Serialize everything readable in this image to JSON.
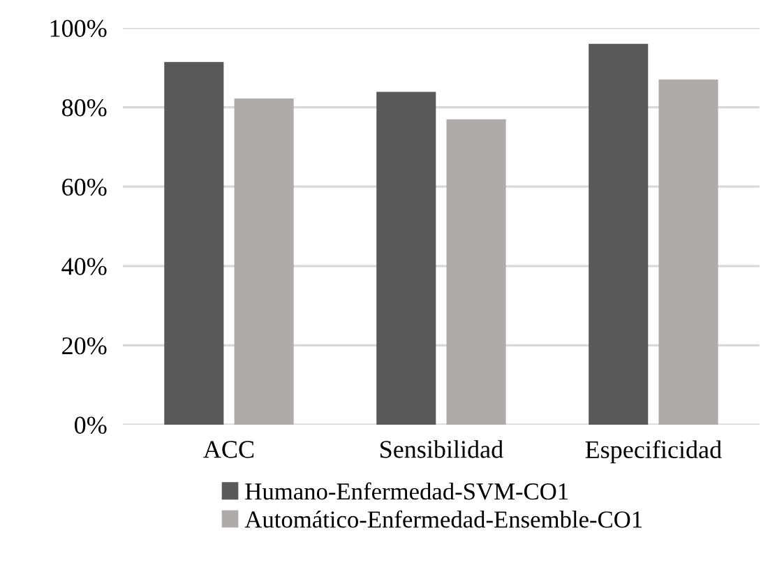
{
  "chart_data": {
    "type": "bar",
    "categories": [
      "ACC",
      "Sensibilidad",
      "Especificidad"
    ],
    "series": [
      {
        "name": "Humano-Enfermedad-SVM-CO1",
        "color": "#595959",
        "values": [
          91.4,
          83.9,
          96.0
        ]
      },
      {
        "name": "Automático-Enfermedad-Ensemble-CO1",
        "color": "#afabab",
        "values": [
          82.2,
          77.0,
          87.0
        ]
      }
    ],
    "ylim": [
      0,
      100
    ],
    "yticks": [
      {
        "value": 0,
        "label": "0%"
      },
      {
        "value": 20,
        "label": "20%"
      },
      {
        "value": 40,
        "label": "40%"
      },
      {
        "value": 60,
        "label": "60%"
      },
      {
        "value": 80,
        "label": "80%"
      },
      {
        "value": 100,
        "label": "100%"
      }
    ],
    "grid": "y",
    "legend": "bottom"
  }
}
